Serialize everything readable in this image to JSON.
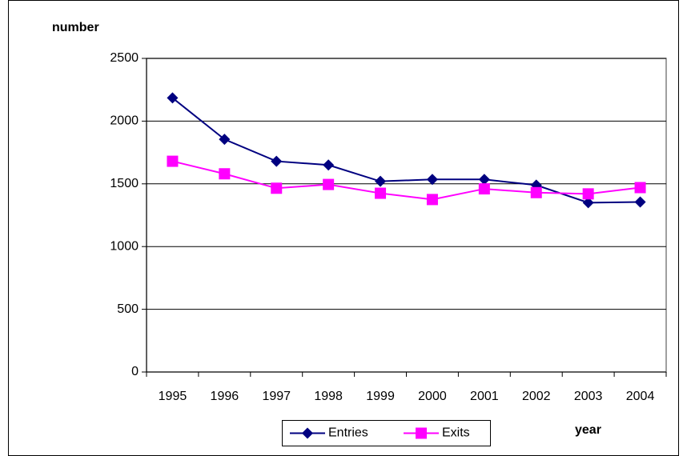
{
  "chart_data": {
    "type": "line",
    "y_label": "number",
    "x_label": "year",
    "categories": [
      "1995",
      "1996",
      "1997",
      "1998",
      "1999",
      "2000",
      "2001",
      "2002",
      "2003",
      "2004"
    ],
    "series": [
      {
        "name": "Entries",
        "color": "#000080",
        "marker": "diamond",
        "values": [
          2185,
          1855,
          1680,
          1650,
          1520,
          1535,
          1535,
          1490,
          1350,
          1355
        ]
      },
      {
        "name": "Exits",
        "color": "#ff00ff",
        "marker": "square",
        "values": [
          1680,
          1580,
          1465,
          1495,
          1425,
          1375,
          1460,
          1430,
          1420,
          1470
        ]
      }
    ],
    "ylim": [
      0,
      2500
    ],
    "yticks": [
      0,
      500,
      1000,
      1500,
      2000,
      2500
    ],
    "grid": true,
    "legend": "bottom"
  }
}
